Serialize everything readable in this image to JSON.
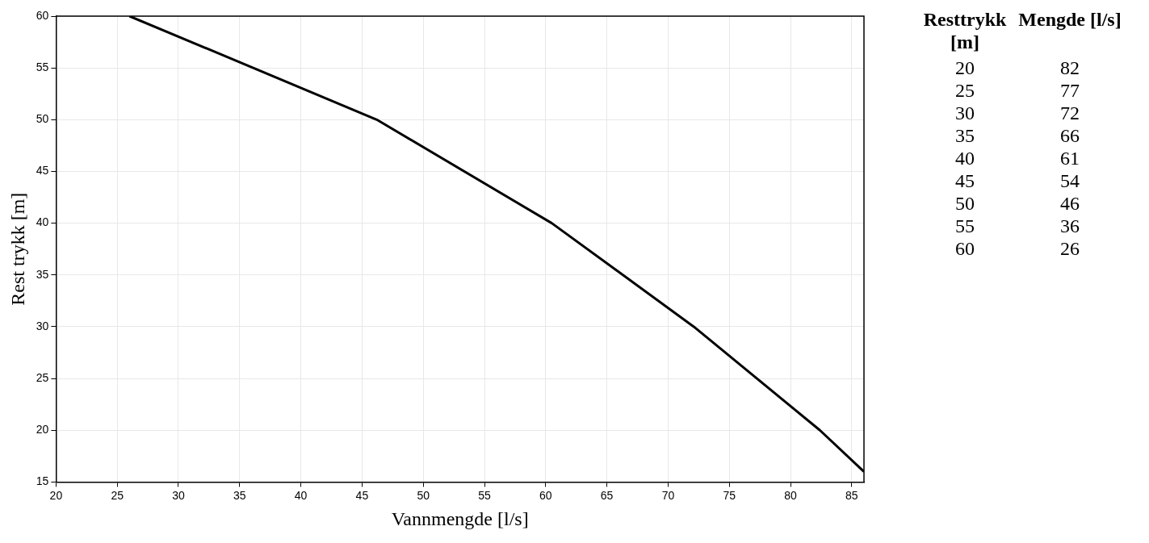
{
  "chart_data": {
    "type": "line",
    "xlabel": "Vannmengde [l/s]",
    "ylabel": "Rest trykk [m]",
    "annotations": [
      "Resttrykk [m]",
      "Mengde [l/s]",
      "20",
      "82",
      "25",
      "77",
      "30",
      "72",
      "35",
      "66",
      "40",
      "61",
      "45",
      "54",
      "50",
      "46",
      "55",
      "36",
      "60",
      "26"
    ],
    "x": [
      26,
      46.2,
      60.5,
      72.1,
      82.4,
      86
    ],
    "series": [
      {
        "color": "#000000",
        "values": [
          60,
          50,
          40,
          30,
          20,
          16
        ]
      }
    ],
    "xlim": [
      20,
      86
    ],
    "xticks": [
      20,
      25,
      30,
      35,
      40,
      45,
      50,
      55,
      60,
      65,
      70,
      75,
      80,
      85
    ],
    "ylim": [
      15,
      60
    ],
    "yticks": [
      15,
      20,
      25,
      30,
      35,
      40,
      45,
      50,
      55,
      60
    ],
    "grid": true,
    "legend": false,
    "marker": "none",
    "line_style": "solid"
  }
}
